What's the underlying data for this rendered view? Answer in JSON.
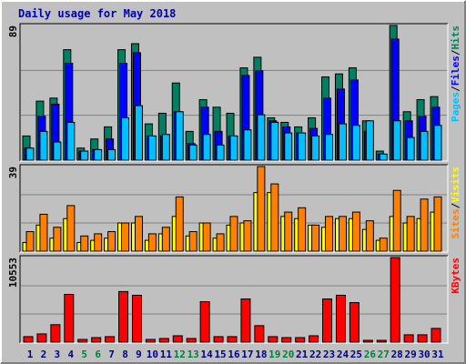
{
  "chart_data": [
    {
      "type": "bar",
      "title": "Daily usage for May 2018",
      "ylim": [
        0,
        89
      ],
      "yticks": [
        89
      ],
      "series": [
        {
          "name": "Hits",
          "color": "#008060",
          "values": [
            16,
            39,
            41,
            73,
            8,
            14,
            22,
            73,
            77,
            24,
            31,
            51,
            19,
            40,
            35,
            31,
            61,
            68,
            28,
            25,
            22,
            28,
            55,
            57,
            61,
            26,
            6,
            89,
            32,
            40,
            42
          ]
        },
        {
          "name": "Files",
          "color": "#0000FF",
          "values": [
            8,
            29,
            37,
            64,
            6,
            7,
            14,
            64,
            71,
            16,
            16,
            32,
            11,
            35,
            19,
            16,
            56,
            59,
            26,
            22,
            18,
            21,
            41,
            47,
            53,
            19,
            4,
            80,
            26,
            29,
            35
          ]
        },
        {
          "name": "Pages",
          "color": "#00C0FF",
          "values": [
            8,
            19,
            12,
            25,
            6,
            7,
            7,
            28,
            36,
            16,
            17,
            32,
            10,
            17,
            10,
            16,
            20,
            30,
            25,
            18,
            18,
            16,
            17,
            24,
            23,
            26,
            4,
            26,
            15,
            19,
            23
          ]
        }
      ]
    },
    {
      "type": "bar",
      "ylim": [
        0,
        39
      ],
      "yticks": [
        39
      ],
      "series": [
        {
          "name": "Visits",
          "color": "#FFFF00",
          "values": [
            4,
            12,
            6,
            15,
            4,
            5,
            6,
            13,
            13,
            5,
            8,
            16,
            7,
            13,
            6,
            12,
            13,
            27,
            27,
            16,
            15,
            12,
            11,
            15,
            15,
            10,
            5,
            16,
            13,
            15,
            18
          ]
        },
        {
          "name": "Sites",
          "color": "#FF8000",
          "values": [
            9,
            17,
            11,
            21,
            7,
            8,
            9,
            13,
            16,
            8,
            11,
            25,
            9,
            13,
            8,
            16,
            14,
            39,
            31,
            18,
            20,
            12,
            16,
            16,
            18,
            14,
            6,
            28,
            16,
            24,
            25
          ]
        }
      ]
    },
    {
      "type": "bar",
      "ylim": [
        0,
        10553
      ],
      "yticks": [
        10553
      ],
      "categories": [
        "1",
        "2",
        "3",
        "4",
        "5",
        "6",
        "7",
        "8",
        "9",
        "10",
        "11",
        "12",
        "13",
        "14",
        "15",
        "16",
        "17",
        "18",
        "19",
        "20",
        "21",
        "22",
        "23",
        "24",
        "25",
        "26",
        "27",
        "28",
        "29",
        "30",
        "31"
      ],
      "category_colors": [
        "#000080",
        "#000080",
        "#000080",
        "#000080",
        "#008040",
        "#008040",
        "#000080",
        "#000080",
        "#000080",
        "#000080",
        "#000080",
        "#008040",
        "#008040",
        "#000080",
        "#000080",
        "#000080",
        "#000080",
        "#000080",
        "#008040",
        "#008040",
        "#000080",
        "#000080",
        "#000080",
        "#000080",
        "#000080",
        "#008040",
        "#008040",
        "#000080",
        "#000080",
        "#000080",
        "#000080"
      ],
      "series": [
        {
          "name": "KBytes",
          "color": "#FF0000",
          "values": [
            690,
            1030,
            2180,
            5960,
            340,
            570,
            690,
            6310,
            5850,
            340,
            460,
            800,
            460,
            5050,
            690,
            690,
            5390,
            2060,
            690,
            570,
            570,
            800,
            5390,
            5850,
            4930,
            230,
            230,
            10553,
            920,
            920,
            1720
          ]
        }
      ]
    }
  ],
  "legend_separator": "/"
}
